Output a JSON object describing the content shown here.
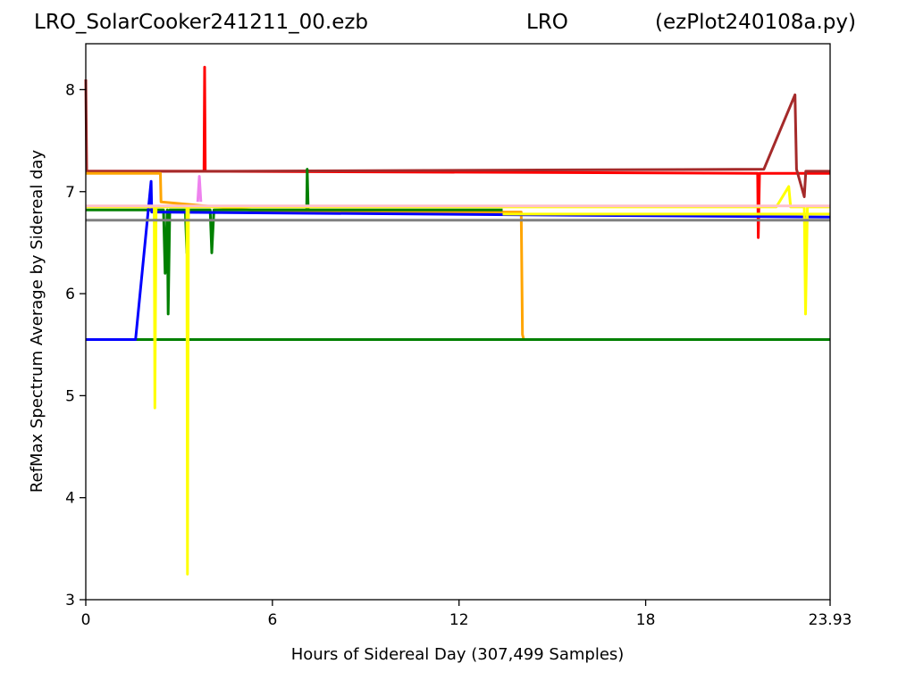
{
  "header": {
    "left": "LRO_SolarCooker241211_00.ezb",
    "center": "LRO",
    "right": "(ezPlot240108a.py)"
  },
  "chart_data": {
    "type": "line",
    "title": "",
    "xlabel": "Hours of Sidereal Day  (307,499 Samples)",
    "ylabel": "RefMax Spectrum Average by Sidereal day",
    "xlim": [
      0,
      23.93
    ],
    "ylim": [
      3,
      8.45
    ],
    "xticks": [
      0,
      6,
      12,
      18,
      23.93
    ],
    "xtick_labels": [
      "0",
      "6",
      "12",
      "18",
      "23.93"
    ],
    "yticks": [
      3,
      4,
      5,
      6,
      7,
      8
    ],
    "ytick_labels": [
      "3",
      "4",
      "5",
      "6",
      "7",
      "8"
    ],
    "grid": false,
    "legend": "none",
    "series": [
      {
        "color": "#ff0000",
        "values": [
          [
            0,
            7.2
          ],
          [
            3.8,
            7.2
          ],
          [
            3.82,
            8.22
          ],
          [
            3.84,
            7.2
          ],
          [
            21.6,
            7.18
          ],
          [
            21.62,
            6.55
          ],
          [
            21.66,
            7.18
          ],
          [
            23.93,
            7.18
          ]
        ]
      },
      {
        "color": "#a52a2a",
        "values": [
          [
            0,
            8.1
          ],
          [
            0.03,
            7.2
          ],
          [
            4.0,
            7.2
          ],
          [
            21.8,
            7.22
          ],
          [
            22.8,
            7.95
          ],
          [
            22.85,
            7.22
          ],
          [
            23.1,
            6.95
          ],
          [
            23.15,
            7.2
          ],
          [
            23.93,
            7.2
          ]
        ]
      },
      {
        "color": "#ffa500",
        "values": [
          [
            0,
            7.18
          ],
          [
            2.4,
            7.18
          ],
          [
            2.42,
            6.9
          ],
          [
            6.0,
            6.8
          ],
          [
            14.0,
            6.8
          ],
          [
            14.04,
            5.6
          ],
          [
            14.08,
            5.55
          ],
          [
            23.93,
            5.55
          ]
        ]
      },
      {
        "color": "#008000",
        "values": [
          [
            0,
            6.82
          ],
          [
            2.5,
            6.82
          ],
          [
            2.55,
            6.2
          ],
          [
            2.62,
            6.82
          ],
          [
            2.65,
            5.8
          ],
          [
            2.7,
            6.82
          ],
          [
            3.2,
            6.82
          ],
          [
            3.25,
            6.4
          ],
          [
            3.3,
            6.82
          ],
          [
            4.0,
            6.82
          ],
          [
            4.05,
            6.4
          ],
          [
            4.12,
            6.82
          ],
          [
            7.1,
            6.82
          ],
          [
            7.12,
            7.22
          ],
          [
            7.15,
            6.82
          ],
          [
            13.4,
            6.82
          ]
        ]
      },
      {
        "color": "#008000",
        "values": [
          [
            0,
            5.55
          ],
          [
            23.93,
            5.55
          ]
        ]
      },
      {
        "color": "#0000ff",
        "values": [
          [
            0,
            5.55
          ],
          [
            1.6,
            5.55
          ],
          [
            2.1,
            7.1
          ],
          [
            2.12,
            6.8
          ],
          [
            23.93,
            6.75
          ]
        ]
      },
      {
        "color": "#ffff00",
        "values": [
          [
            0,
            6.85
          ],
          [
            2.2,
            6.85
          ],
          [
            2.22,
            4.88
          ],
          [
            2.26,
            6.85
          ],
          [
            3.25,
            6.85
          ],
          [
            3.27,
            3.25
          ],
          [
            3.3,
            6.85
          ],
          [
            22.2,
            6.85
          ],
          [
            22.6,
            7.05
          ],
          [
            22.66,
            6.85
          ],
          [
            23.1,
            6.85
          ],
          [
            23.14,
            5.8
          ],
          [
            23.2,
            6.85
          ],
          [
            23.93,
            6.85
          ]
        ]
      },
      {
        "color": "#ffff00",
        "values": [
          [
            13.4,
            6.78
          ],
          [
            23.93,
            6.78
          ]
        ]
      },
      {
        "color": "#ee82ee",
        "values": [
          [
            3.6,
            6.9
          ],
          [
            3.65,
            7.15
          ],
          [
            3.7,
            6.9
          ]
        ]
      },
      {
        "color": "#808080",
        "values": [
          [
            0,
            6.72
          ],
          [
            23.93,
            6.72
          ]
        ]
      },
      {
        "color": "#ffc0cb",
        "values": [
          [
            0,
            6.86
          ],
          [
            23.93,
            6.86
          ]
        ]
      }
    ]
  }
}
